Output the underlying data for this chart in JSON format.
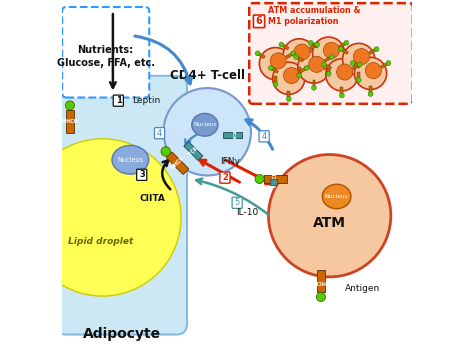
{
  "bg_color": "#ffffff",
  "mhcii_color": "#cc6600",
  "antigen_color": "#55cc00",
  "teal_color": "#449999",
  "red_color": "#dd2200",
  "blue_color": "#4488cc",
  "black_color": "#111111",
  "label_lipid": "Lipid droplet",
  "label_ciita": "CIITA",
  "label_leptin": "Leptin",
  "label_ifng": "IFNγ",
  "label_il10": "IL-10",
  "label_antigen": "Antigen",
  "label_nucleus": "Nucleus",
  "label_atm_accum": "ATM accumulation &\nM1 polarization"
}
